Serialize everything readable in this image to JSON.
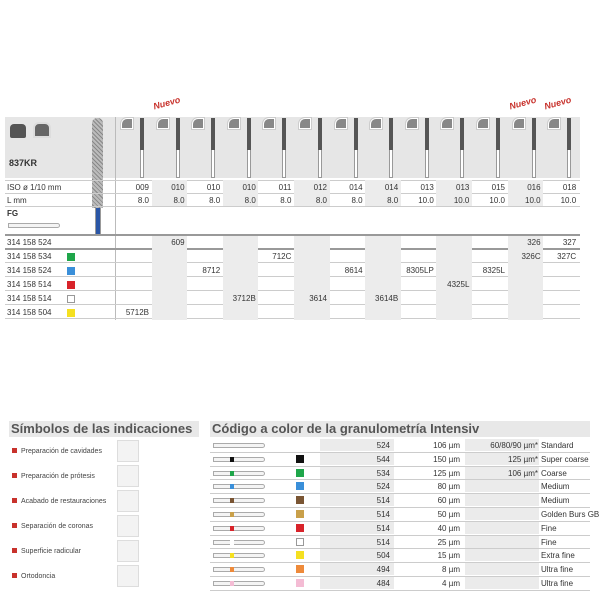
{
  "product": {
    "model": "837KR",
    "iso_label": "ISO ø 1/10 mm",
    "l_label": "L mm",
    "shank_label": "FG",
    "nuevo_label": "Nuevo"
  },
  "columns": [
    {
      "iso": "009",
      "l": "8.0",
      "codes": [
        "",
        "",
        "",
        "",
        "",
        "5712B"
      ],
      "nuevo": false
    },
    {
      "iso": "010",
      "l": "8.0",
      "codes": [
        "609",
        "",
        "",
        "",
        "",
        ""
      ],
      "nuevo": true
    },
    {
      "iso": "010",
      "l": "8.0",
      "codes": [
        "",
        "",
        "8712",
        "",
        "",
        ""
      ],
      "nuevo": false
    },
    {
      "iso": "010",
      "l": "8.0",
      "codes": [
        "",
        "",
        "",
        "",
        "3712B",
        ""
      ],
      "nuevo": false
    },
    {
      "iso": "011",
      "l": "8.0",
      "codes": [
        "",
        "712C",
        "",
        "",
        "",
        ""
      ],
      "nuevo": false
    },
    {
      "iso": "012",
      "l": "8.0",
      "codes": [
        "",
        "",
        "",
        "",
        "3614",
        ""
      ],
      "nuevo": false
    },
    {
      "iso": "014",
      "l": "8.0",
      "codes": [
        "",
        "",
        "8614",
        "",
        "",
        ""
      ],
      "nuevo": false
    },
    {
      "iso": "014",
      "l": "8.0",
      "codes": [
        "",
        "",
        "",
        "",
        "3614B",
        ""
      ],
      "nuevo": false
    },
    {
      "iso": "013",
      "l": "10.0",
      "codes": [
        "",
        "",
        "8305LP",
        "",
        "",
        ""
      ],
      "nuevo": false
    },
    {
      "iso": "013",
      "l": "10.0",
      "codes": [
        "",
        "",
        "",
        "4325L",
        "",
        ""
      ],
      "nuevo": false
    },
    {
      "iso": "015",
      "l": "10.0",
      "codes": [
        "",
        "",
        "8325L",
        "",
        "",
        ""
      ],
      "nuevo": false
    },
    {
      "iso": "016",
      "l": "10.0",
      "codes": [
        "326",
        "326C",
        "",
        "",
        "",
        ""
      ],
      "nuevo": true
    },
    {
      "iso": "018",
      "l": "10.0",
      "codes": [
        "327",
        "327C",
        "",
        "",
        "",
        ""
      ],
      "nuevo": true
    }
  ],
  "rows": [
    {
      "ref": "314 158 524",
      "color": ""
    },
    {
      "ref": "314 158 534",
      "color": "#1fa64a"
    },
    {
      "ref": "314 158 524",
      "color": "#3a8fd9"
    },
    {
      "ref": "314 158 514",
      "color": "#d8232a"
    },
    {
      "ref": "314 158 514",
      "color": "#ffffff"
    },
    {
      "ref": "314 158 504",
      "color": "#f5e020"
    }
  ],
  "indications": {
    "title": "Símbolos de las indicaciones",
    "items": [
      "Preparación de cavidades",
      "Preparación de prótesis",
      "Acabado de restauraciones",
      "Separación de coronas",
      "Superficie radicular",
      "Ortodoncia"
    ]
  },
  "color_code": {
    "title": "Código a color de la granulometría Intensiv",
    "rows": [
      {
        "color": "",
        "code": "524",
        "grit": "106 µm",
        "alt": "60/80/90 µm*",
        "name": "Standard"
      },
      {
        "color": "#111111",
        "code": "544",
        "grit": "150 µm",
        "alt": "125 µm*",
        "name": "Super coarse"
      },
      {
        "color": "#1fa64a",
        "code": "534",
        "grit": "125 µm",
        "alt": "106 µm*",
        "name": "Coarse"
      },
      {
        "color": "#3a8fd9",
        "code": "524",
        "grit": "80 µm",
        "alt": "",
        "name": "Medium"
      },
      {
        "color": "#7a5533",
        "code": "514",
        "grit": "60 µm",
        "alt": "",
        "name": "Medium"
      },
      {
        "color": "#c9a04a",
        "code": "514",
        "grit": "50 µm",
        "alt": "",
        "name": "Golden Burs GB"
      },
      {
        "color": "#d8232a",
        "code": "514",
        "grit": "40 µm",
        "alt": "",
        "name": "Fine"
      },
      {
        "color": "#ffffff",
        "code": "514",
        "grit": "25 µm",
        "alt": "",
        "name": "Fine"
      },
      {
        "color": "#f5e020",
        "code": "504",
        "grit": "15 µm",
        "alt": "",
        "name": "Extra fine"
      },
      {
        "color": "#ee8a3a",
        "code": "494",
        "grit": "8 µm",
        "alt": "",
        "name": "Ultra fine"
      },
      {
        "color": "#f4bcd4",
        "code": "484",
        "grit": "4 µm",
        "alt": "",
        "name": "Ultra fine"
      }
    ]
  }
}
